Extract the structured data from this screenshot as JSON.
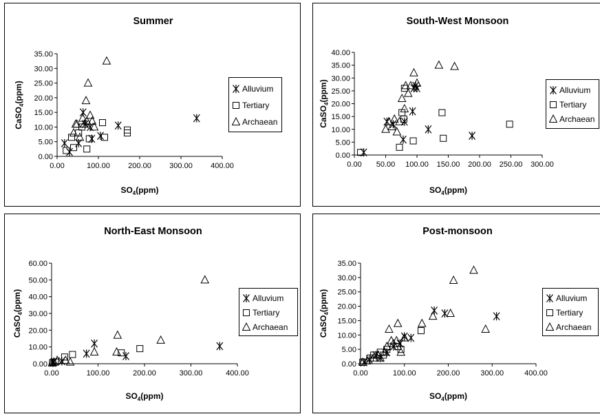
{
  "chart_data": [
    {
      "type": "scatter",
      "title": "Summer",
      "xlabel": "SO4(ppm)",
      "ylabel": "CaSO4(ppm)",
      "xlim": [
        0,
        400
      ],
      "ylim": [
        0,
        35
      ],
      "xticks": [
        "0.00",
        "100.00",
        "200.00",
        "300.00",
        "400.00"
      ],
      "yticks": [
        "0.00",
        "5.00",
        "10.00",
        "15.00",
        "20.00",
        "25.00",
        "30.00",
        "35.00"
      ],
      "legend_position": "right",
      "series": [
        {
          "name": "Alluvium",
          "marker": "asterisk",
          "x": [
            18,
            30,
            52,
            63,
            68,
            80,
            84,
            105,
            148,
            338
          ],
          "y": [
            4.5,
            1.5,
            4.5,
            15,
            11,
            10,
            6,
            7,
            10.5,
            13
          ]
        },
        {
          "name": "Tertiary",
          "marker": "square",
          "x": [
            22,
            35,
            40,
            52,
            60,
            72,
            78,
            110,
            115,
            170,
            170
          ],
          "y": [
            2,
            6.5,
            3,
            8,
            10,
            2.5,
            6,
            11.5,
            6.5,
            8,
            9
          ]
        },
        {
          "name": "Archaean",
          "marker": "triangle",
          "x": [
            40,
            45,
            48,
            55,
            62,
            66,
            70,
            72,
            75,
            80,
            85,
            90,
            120
          ],
          "y": [
            8,
            11,
            11,
            6.5,
            13,
            11,
            19,
            12,
            25,
            14,
            12,
            10,
            32.5
          ]
        }
      ]
    },
    {
      "type": "scatter",
      "title": "South-West Monsoon",
      "xlabel": "SO4(ppm)",
      "ylabel": "CaSO4(ppm)",
      "xlim": [
        0,
        300
      ],
      "ylim": [
        0,
        40
      ],
      "xticks": [
        "0.00",
        "50.00",
        "100.00",
        "150.00",
        "200.00",
        "250.00",
        "300.00"
      ],
      "yticks": [
        "0.00",
        "5.00",
        "10.00",
        "15.00",
        "20.00",
        "25.00",
        "30.00",
        "35.00",
        "40.00"
      ],
      "legend_position": "right",
      "series": [
        {
          "name": "Alluvium",
          "marker": "asterisk",
          "x": [
            15,
            52,
            62,
            78,
            80,
            93,
            95,
            98,
            100,
            118,
            188
          ],
          "y": [
            1,
            13,
            12,
            6,
            13,
            17,
            26,
            27,
            26,
            10,
            7.5
          ]
        },
        {
          "name": "Tertiary",
          "marker": "square",
          "x": [
            10,
            72,
            76,
            79,
            80,
            94,
            140,
            142,
            248
          ],
          "y": [
            1,
            3,
            16.5,
            14,
            26,
            5.5,
            16.5,
            6.5,
            12
          ]
        },
        {
          "name": "Archaean",
          "marker": "triangle",
          "x": [
            50,
            55,
            60,
            64,
            68,
            72,
            76,
            80,
            82,
            86,
            90,
            95,
            100,
            135,
            160
          ],
          "y": [
            10,
            13,
            11,
            14,
            9,
            13,
            22,
            18,
            27,
            24,
            27,
            32,
            28,
            35,
            34.5
          ]
        }
      ]
    },
    {
      "type": "scatter",
      "title": "North-East Monsoon",
      "xlabel": "SO4(ppm)",
      "ylabel": "CaSO4(ppm)",
      "xlim": [
        0,
        400
      ],
      "ylim": [
        0,
        60
      ],
      "xticks": [
        "0.00",
        "100.00",
        "200.00",
        "300.00",
        "400.00"
      ],
      "yticks": [
        "0.00",
        "10.00",
        "20.00",
        "30.00",
        "40.00",
        "50.00",
        "60.00"
      ],
      "legend_position": "right",
      "series": [
        {
          "name": "Alluvium",
          "marker": "asterisk",
          "x": [
            3,
            5,
            22,
            75,
            92,
            160,
            362
          ],
          "y": [
            0.5,
            1,
            1.5,
            6,
            12,
            4.5,
            10.5
          ]
        },
        {
          "name": "Tertiary",
          "marker": "square",
          "x": [
            2,
            8,
            28,
            45,
            150,
            190
          ],
          "y": [
            0.5,
            1,
            4,
            5.5,
            6.5,
            9
          ]
        },
        {
          "name": "Archaean",
          "marker": "triangle",
          "x": [
            1,
            5,
            12,
            30,
            40,
            92,
            140,
            142,
            235,
            330
          ],
          "y": [
            0.5,
            1,
            2,
            2,
            1,
            7,
            7,
            17,
            14,
            50
          ]
        }
      ]
    },
    {
      "type": "scatter",
      "title": "Post-monsoon",
      "xlabel": "SO4(ppm)",
      "ylabel": "CaSO4(ppm)",
      "xlim": [
        0,
        400
      ],
      "ylim": [
        0,
        35
      ],
      "xticks": [
        "0.00",
        "100.00",
        "200.00",
        "300.00",
        "400.00"
      ],
      "yticks": [
        "0.00",
        "5.00",
        "10.00",
        "15.00",
        "20.00",
        "25.00",
        "30.00",
        "35.00"
      ],
      "legend_position": "right",
      "series": [
        {
          "name": "Alluvium",
          "marker": "asterisk",
          "x": [
            8,
            20,
            35,
            45,
            60,
            75,
            90,
            100,
            115,
            168,
            192,
            310
          ],
          "y": [
            0.5,
            1.5,
            3,
            2,
            4,
            6,
            7,
            9.5,
            9,
            18.5,
            17.5,
            16.5
          ]
        },
        {
          "name": "Tertiary",
          "marker": "square",
          "x": [
            5,
            22,
            30,
            45,
            52,
            60,
            85,
            92,
            138
          ],
          "y": [
            0.5,
            2,
            3,
            4,
            3,
            5,
            6,
            5,
            11.5
          ]
        },
        {
          "name": "Archaean",
          "marker": "triangle",
          "x": [
            5,
            15,
            30,
            40,
            45,
            55,
            60,
            65,
            70,
            75,
            82,
            85,
            92,
            100,
            140,
            165,
            205,
            212,
            258,
            285
          ],
          "y": [
            0.5,
            1,
            2,
            3,
            2,
            4,
            6,
            12,
            8,
            7,
            8,
            14,
            4,
            9,
            14,
            16.5,
            17.5,
            29,
            32.5,
            12
          ]
        }
      ]
    }
  ]
}
